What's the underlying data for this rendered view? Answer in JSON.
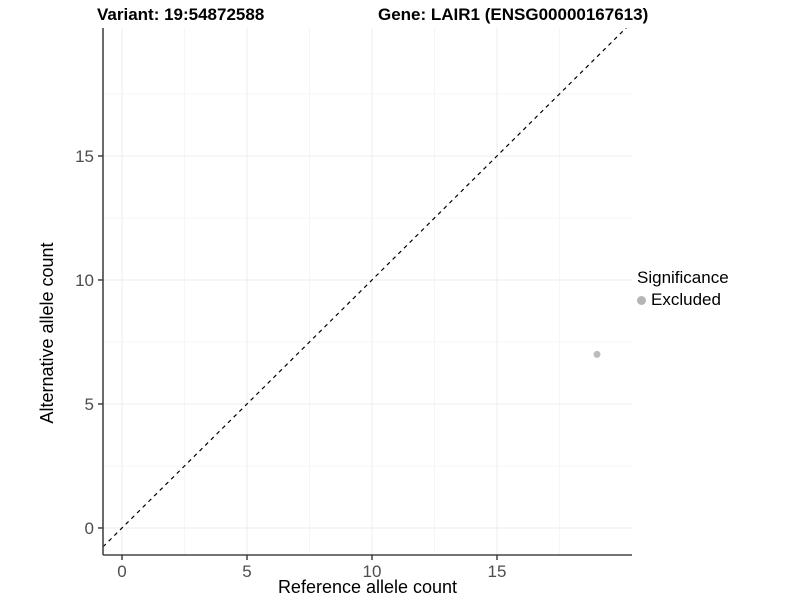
{
  "title": {
    "left": "Variant: 19:54872588",
    "right": "Gene: LAIR1 (ENSG00000167613)"
  },
  "axes": {
    "xlabel": "Reference allele count",
    "ylabel": "Alternative allele count"
  },
  "legend": {
    "title": "Significance",
    "items": [
      {
        "label": "Excluded",
        "color": "#b5b5b5"
      }
    ]
  },
  "colors": {
    "background": "#ffffff",
    "grid_major": "#ececec",
    "grid_minor": "#f5f5f5",
    "axis_line": "#464646",
    "tick_mark": "#333333",
    "tick_label": "#4d4d4d",
    "point": "#bcbcbc",
    "reference_line": "#000000"
  },
  "chart_data": {
    "type": "scatter",
    "title": "Variant: 19:54872588   Gene: LAIR1 (ENSG00000167613)",
    "xlabel": "Reference allele count",
    "ylabel": "Alternative allele count",
    "xlim": [
      -0.76,
      20.4
    ],
    "ylim": [
      -1.09,
      20.16
    ],
    "x_ticks": [
      0,
      5,
      10,
      15
    ],
    "y_ticks": [
      0,
      5,
      10,
      15
    ],
    "x_minor_ticks": [
      2.5,
      7.5,
      12.5,
      17.5
    ],
    "y_minor_ticks": [
      2.5,
      7.5,
      12.5,
      17.5
    ],
    "grid": true,
    "legend_position": "right",
    "series": [
      {
        "name": "Excluded",
        "color": "#bcbcbc",
        "points": [
          {
            "x": 19,
            "y": 7
          }
        ]
      }
    ],
    "reference_line": {
      "type": "identity",
      "slope": 1,
      "intercept": 0,
      "style": "dashed",
      "color": "#000000"
    }
  }
}
